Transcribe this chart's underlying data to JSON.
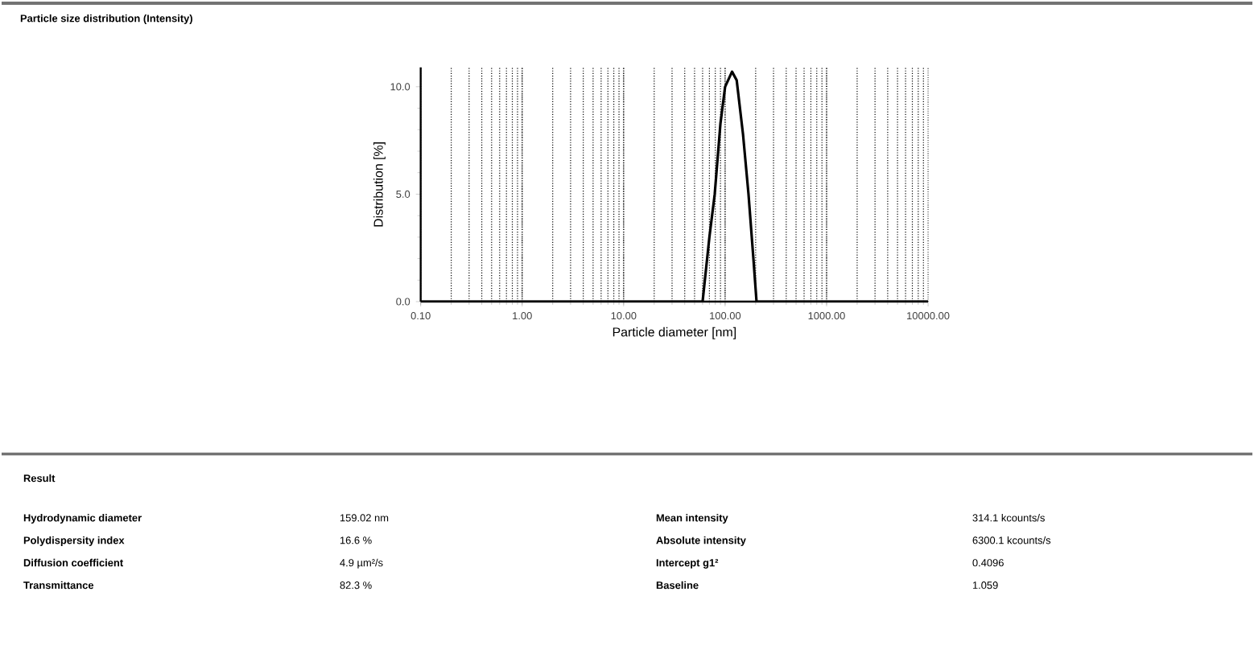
{
  "chart_data": {
    "type": "line",
    "title": "Particle size distribution (Intensity)",
    "xlabel": "Particle diameter [nm]",
    "ylabel": "Distribution [%]",
    "x": [
      0.1,
      60,
      70,
      79,
      90,
      100,
      117,
      130,
      150,
      170,
      190,
      204,
      10000
    ],
    "series": [
      {
        "color": "#000000",
        "values": [
          0,
          0,
          3.0,
          5.0,
          8.3,
          10.0,
          10.7,
          10.3,
          7.8,
          5.0,
          2.0,
          0,
          0
        ]
      }
    ],
    "log": "x",
    "xlim": [
      0.1,
      10000
    ],
    "ylim": [
      0,
      10.9
    ],
    "xticks": [
      {
        "value": 0.1,
        "label": "0.10"
      },
      {
        "value": 1,
        "label": "1.00"
      },
      {
        "value": 10,
        "label": "10.00"
      },
      {
        "value": 100,
        "label": "100.00"
      },
      {
        "value": 1000,
        "label": "1000.00"
      },
      {
        "value": 10000,
        "label": "10000.00"
      }
    ],
    "yticks": [
      {
        "value": 0,
        "label": "0.0"
      },
      {
        "value": 5,
        "label": "5.0"
      },
      {
        "value": 10,
        "label": "10.0"
      }
    ],
    "grid": "x",
    "marker": "none",
    "line_style": "solid",
    "annotations": [
      "Result",
      "Hydrodynamic diameter",
      "159.02 nm",
      "Mean intensity",
      "314.1 kcounts/s",
      "Polydispersity index",
      "16.6 %",
      "Absolute intensity",
      "6300.1 kcounts/s",
      "Diffusion coefficient",
      "4.9 µm²/s",
      "Intercept g1²",
      "0.4096",
      "Transmittance",
      "82.3 %",
      "Baseline",
      "1.059"
    ]
  }
}
